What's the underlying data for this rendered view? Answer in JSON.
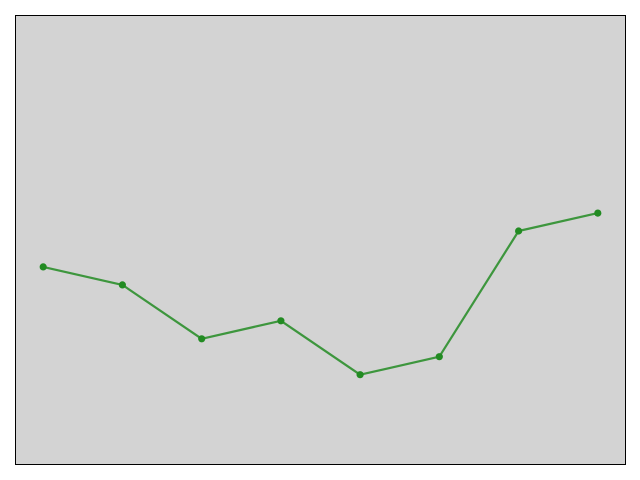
{
  "chart_data": {
    "type": "line",
    "x": [
      0,
      1,
      2,
      3,
      4,
      5,
      6,
      7
    ],
    "series": [
      {
        "values": [
          3.0,
          2.8,
          2.2,
          2.4,
          1.8,
          2.0,
          3.4,
          3.6
        ],
        "color": "#228b22"
      }
    ],
    "xlim": [
      -0.35,
      7.35
    ],
    "ylim": [
      0.8,
      5.8
    ],
    "grid": false,
    "legend": "none",
    "plot_background": "#d3d3d3",
    "axes_visible": false
  }
}
